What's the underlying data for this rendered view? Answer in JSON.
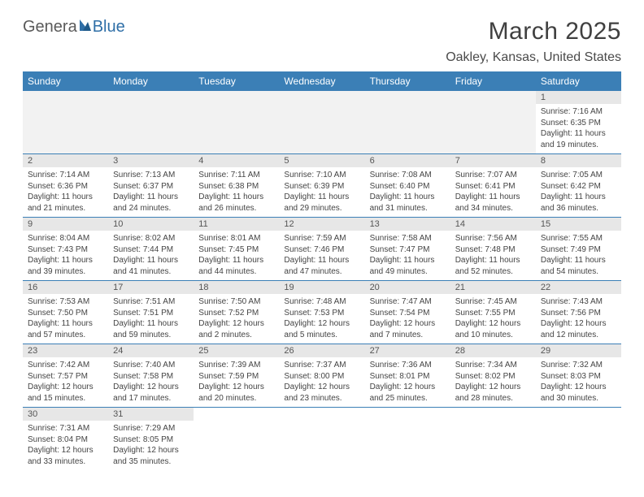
{
  "logo": {
    "part1": "Genera",
    "part2": "Blue"
  },
  "title": "March 2025",
  "location": "Oakley, Kansas, United States",
  "day_names": [
    "Sunday",
    "Monday",
    "Tuesday",
    "Wednesday",
    "Thursday",
    "Friday",
    "Saturday"
  ],
  "colors": {
    "header_bg": "#3b7fb6",
    "header_text": "#ffffff",
    "daynum_bg": "#e7e7e7",
    "blank_bg": "#f2f2f2",
    "rule": "#3b7fb6",
    "text": "#444444"
  },
  "weeks": [
    [
      {
        "blank": true
      },
      {
        "blank": true
      },
      {
        "blank": true
      },
      {
        "blank": true
      },
      {
        "blank": true
      },
      {
        "blank": true
      },
      {
        "n": "1",
        "sr": "Sunrise: 7:16 AM",
        "ss": "Sunset: 6:35 PM",
        "dl1": "Daylight: 11 hours",
        "dl2": "and 19 minutes."
      }
    ],
    [
      {
        "n": "2",
        "sr": "Sunrise: 7:14 AM",
        "ss": "Sunset: 6:36 PM",
        "dl1": "Daylight: 11 hours",
        "dl2": "and 21 minutes."
      },
      {
        "n": "3",
        "sr": "Sunrise: 7:13 AM",
        "ss": "Sunset: 6:37 PM",
        "dl1": "Daylight: 11 hours",
        "dl2": "and 24 minutes."
      },
      {
        "n": "4",
        "sr": "Sunrise: 7:11 AM",
        "ss": "Sunset: 6:38 PM",
        "dl1": "Daylight: 11 hours",
        "dl2": "and 26 minutes."
      },
      {
        "n": "5",
        "sr": "Sunrise: 7:10 AM",
        "ss": "Sunset: 6:39 PM",
        "dl1": "Daylight: 11 hours",
        "dl2": "and 29 minutes."
      },
      {
        "n": "6",
        "sr": "Sunrise: 7:08 AM",
        "ss": "Sunset: 6:40 PM",
        "dl1": "Daylight: 11 hours",
        "dl2": "and 31 minutes."
      },
      {
        "n": "7",
        "sr": "Sunrise: 7:07 AM",
        "ss": "Sunset: 6:41 PM",
        "dl1": "Daylight: 11 hours",
        "dl2": "and 34 minutes."
      },
      {
        "n": "8",
        "sr": "Sunrise: 7:05 AM",
        "ss": "Sunset: 6:42 PM",
        "dl1": "Daylight: 11 hours",
        "dl2": "and 36 minutes."
      }
    ],
    [
      {
        "n": "9",
        "sr": "Sunrise: 8:04 AM",
        "ss": "Sunset: 7:43 PM",
        "dl1": "Daylight: 11 hours",
        "dl2": "and 39 minutes."
      },
      {
        "n": "10",
        "sr": "Sunrise: 8:02 AM",
        "ss": "Sunset: 7:44 PM",
        "dl1": "Daylight: 11 hours",
        "dl2": "and 41 minutes."
      },
      {
        "n": "11",
        "sr": "Sunrise: 8:01 AM",
        "ss": "Sunset: 7:45 PM",
        "dl1": "Daylight: 11 hours",
        "dl2": "and 44 minutes."
      },
      {
        "n": "12",
        "sr": "Sunrise: 7:59 AM",
        "ss": "Sunset: 7:46 PM",
        "dl1": "Daylight: 11 hours",
        "dl2": "and 47 minutes."
      },
      {
        "n": "13",
        "sr": "Sunrise: 7:58 AM",
        "ss": "Sunset: 7:47 PM",
        "dl1": "Daylight: 11 hours",
        "dl2": "and 49 minutes."
      },
      {
        "n": "14",
        "sr": "Sunrise: 7:56 AM",
        "ss": "Sunset: 7:48 PM",
        "dl1": "Daylight: 11 hours",
        "dl2": "and 52 minutes."
      },
      {
        "n": "15",
        "sr": "Sunrise: 7:55 AM",
        "ss": "Sunset: 7:49 PM",
        "dl1": "Daylight: 11 hours",
        "dl2": "and 54 minutes."
      }
    ],
    [
      {
        "n": "16",
        "sr": "Sunrise: 7:53 AM",
        "ss": "Sunset: 7:50 PM",
        "dl1": "Daylight: 11 hours",
        "dl2": "and 57 minutes."
      },
      {
        "n": "17",
        "sr": "Sunrise: 7:51 AM",
        "ss": "Sunset: 7:51 PM",
        "dl1": "Daylight: 11 hours",
        "dl2": "and 59 minutes."
      },
      {
        "n": "18",
        "sr": "Sunrise: 7:50 AM",
        "ss": "Sunset: 7:52 PM",
        "dl1": "Daylight: 12 hours",
        "dl2": "and 2 minutes."
      },
      {
        "n": "19",
        "sr": "Sunrise: 7:48 AM",
        "ss": "Sunset: 7:53 PM",
        "dl1": "Daylight: 12 hours",
        "dl2": "and 5 minutes."
      },
      {
        "n": "20",
        "sr": "Sunrise: 7:47 AM",
        "ss": "Sunset: 7:54 PM",
        "dl1": "Daylight: 12 hours",
        "dl2": "and 7 minutes."
      },
      {
        "n": "21",
        "sr": "Sunrise: 7:45 AM",
        "ss": "Sunset: 7:55 PM",
        "dl1": "Daylight: 12 hours",
        "dl2": "and 10 minutes."
      },
      {
        "n": "22",
        "sr": "Sunrise: 7:43 AM",
        "ss": "Sunset: 7:56 PM",
        "dl1": "Daylight: 12 hours",
        "dl2": "and 12 minutes."
      }
    ],
    [
      {
        "n": "23",
        "sr": "Sunrise: 7:42 AM",
        "ss": "Sunset: 7:57 PM",
        "dl1": "Daylight: 12 hours",
        "dl2": "and 15 minutes."
      },
      {
        "n": "24",
        "sr": "Sunrise: 7:40 AM",
        "ss": "Sunset: 7:58 PM",
        "dl1": "Daylight: 12 hours",
        "dl2": "and 17 minutes."
      },
      {
        "n": "25",
        "sr": "Sunrise: 7:39 AM",
        "ss": "Sunset: 7:59 PM",
        "dl1": "Daylight: 12 hours",
        "dl2": "and 20 minutes."
      },
      {
        "n": "26",
        "sr": "Sunrise: 7:37 AM",
        "ss": "Sunset: 8:00 PM",
        "dl1": "Daylight: 12 hours",
        "dl2": "and 23 minutes."
      },
      {
        "n": "27",
        "sr": "Sunrise: 7:36 AM",
        "ss": "Sunset: 8:01 PM",
        "dl1": "Daylight: 12 hours",
        "dl2": "and 25 minutes."
      },
      {
        "n": "28",
        "sr": "Sunrise: 7:34 AM",
        "ss": "Sunset: 8:02 PM",
        "dl1": "Daylight: 12 hours",
        "dl2": "and 28 minutes."
      },
      {
        "n": "29",
        "sr": "Sunrise: 7:32 AM",
        "ss": "Sunset: 8:03 PM",
        "dl1": "Daylight: 12 hours",
        "dl2": "and 30 minutes."
      }
    ],
    [
      {
        "n": "30",
        "sr": "Sunrise: 7:31 AM",
        "ss": "Sunset: 8:04 PM",
        "dl1": "Daylight: 12 hours",
        "dl2": "and 33 minutes."
      },
      {
        "n": "31",
        "sr": "Sunrise: 7:29 AM",
        "ss": "Sunset: 8:05 PM",
        "dl1": "Daylight: 12 hours",
        "dl2": "and 35 minutes."
      },
      {
        "blank": true,
        "nobg": true
      },
      {
        "blank": true,
        "nobg": true
      },
      {
        "blank": true,
        "nobg": true
      },
      {
        "blank": true,
        "nobg": true
      },
      {
        "blank": true,
        "nobg": true
      }
    ]
  ]
}
